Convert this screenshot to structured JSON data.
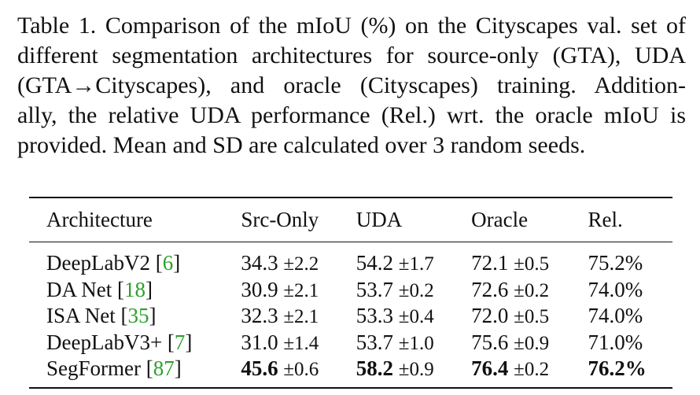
{
  "caption": {
    "lines": [
      "Table 1. Comparison of the mIoU (%) on the Cityscapes val. set of",
      "different segmentation architectures for source-only (GTA), UDA",
      "(GTA→Cityscapes), and oracle (Cityscapes) training.  Addition-",
      "ally, the relative UDA performance (Rel.) wrt. the oracle mIoU is",
      "provided. Mean and SD are calculated over 3 random seeds."
    ]
  },
  "table": {
    "headers": [
      "Architecture",
      "Src-Only",
      "UDA",
      "Oracle",
      "Rel."
    ],
    "rows": [
      {
        "name": "DeepLabV2",
        "ref": "6",
        "src": "34.3",
        "src_sd": "±2.2",
        "uda": "54.2",
        "uda_sd": "±1.7",
        "oracle": "72.1",
        "oracle_sd": "±0.5",
        "rel": "75.2%"
      },
      {
        "name": "DA Net",
        "ref": "18",
        "src": "30.9",
        "src_sd": "±2.1",
        "uda": "53.7",
        "uda_sd": "±0.2",
        "oracle": "72.6",
        "oracle_sd": "±0.2",
        "rel": "74.0%"
      },
      {
        "name": "ISA Net",
        "ref": "35",
        "src": "32.3",
        "src_sd": "±2.1",
        "uda": "53.3",
        "uda_sd": "±0.4",
        "oracle": "72.0",
        "oracle_sd": "±0.5",
        "rel": "74.0%"
      },
      {
        "name": "DeepLabV3+",
        "ref": "7",
        "src": "31.0",
        "src_sd": "±1.4",
        "uda": "53.7",
        "uda_sd": "±1.0",
        "oracle": "75.6",
        "oracle_sd": "±0.9",
        "rel": "71.0%"
      },
      {
        "name": "SegFormer",
        "ref": "87",
        "src": "45.6",
        "src_sd": "±0.6",
        "uda": "58.2",
        "uda_sd": "±0.9",
        "oracle": "76.4",
        "oracle_sd": "±0.2",
        "rel": "76.2%"
      }
    ]
  },
  "colors": {
    "citation": "#2ca02c",
    "text": "#111111"
  }
}
